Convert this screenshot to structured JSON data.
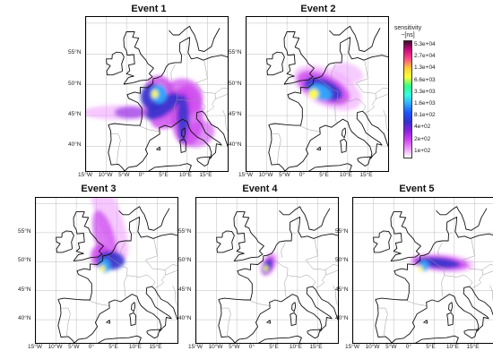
{
  "figure": {
    "panels": [
      {
        "title": "Event 1",
        "lat_labels": [
          "55°N",
          "50°N",
          "45°N",
          "40°N"
        ],
        "lon_labels": [
          "15°W",
          "10°W",
          "5°W",
          "0°",
          "5°E",
          "10°E",
          "15°E"
        ]
      },
      {
        "title": "Event 2",
        "lat_labels": [
          "55°N",
          "50°N",
          "45°N",
          "40°N"
        ],
        "lon_labels": [
          "15°W",
          "10°W",
          "5°W",
          "0°",
          "5°E",
          "10°E",
          "15°E"
        ]
      },
      {
        "title": "Event 3",
        "lat_labels": [
          "55°N",
          "50°N",
          "45°N",
          "40°N"
        ],
        "lon_labels": [
          "15°W",
          "10°W",
          "5°W",
          "0°",
          "5°E",
          "10°E",
          "15°E"
        ]
      },
      {
        "title": "Event 4",
        "lat_labels": [
          "55°N",
          "50°N",
          "45°N",
          "40°N"
        ],
        "lon_labels": [
          "15°W",
          "10°W",
          "5°W",
          "0°",
          "5°E",
          "10°E",
          "15°E"
        ]
      },
      {
        "title": "Event 5",
        "lat_labels": [
          "55°N",
          "50°N",
          "45°N",
          "40°N"
        ],
        "lon_labels": [
          "15°W",
          "10°W",
          "5°W",
          "0°",
          "5°E",
          "10°E",
          "15°E"
        ]
      }
    ],
    "colorbar": {
      "title_line1": "sensitivity",
      "title_line2": "~[ns]",
      "labels": [
        "5.3e+04",
        "2.7e+04",
        "1.3e+04",
        "6.6e+03",
        "3.3e+03",
        "1.6e+03",
        "8.1e+02",
        "4e+02",
        "2e+02",
        "1e+02"
      ],
      "colors": [
        "#3a0a2e",
        "#cc0a7a",
        "#ff4d88",
        "#ffcc33",
        "#ffff33",
        "#33ff88",
        "#33ffe0",
        "#33aaff",
        "#1a55ff",
        "#3333cc",
        "#8822dd",
        "#cc44ee",
        "#ee99ff",
        "#ffffff"
      ]
    }
  }
}
